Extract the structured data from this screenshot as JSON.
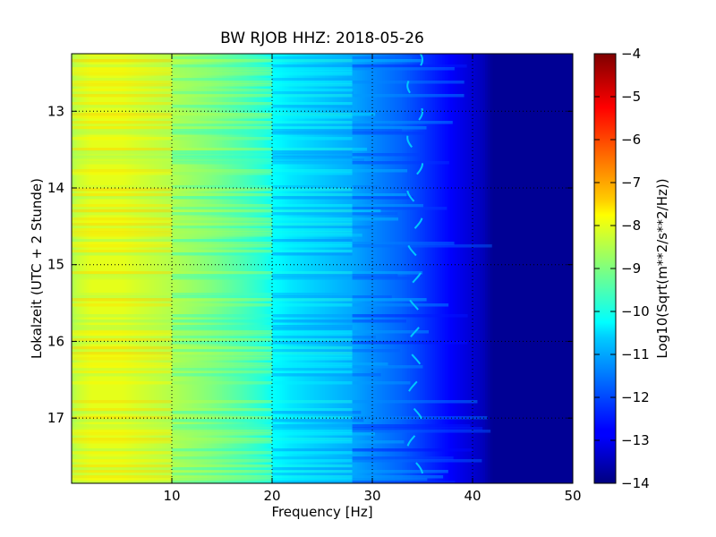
{
  "chart_data": {
    "type": "heatmap",
    "title": "BW RJOB HHZ: 2018-05-26",
    "xlabel": "Frequency [Hz]",
    "ylabel": "Lokalzeit (UTC + 2 Stunde)",
    "xlim": [
      0,
      50
    ],
    "ylim": [
      12.25,
      17.85
    ],
    "y_inverted": true,
    "x_ticks": [
      10,
      20,
      30,
      40,
      50
    ],
    "x_tick_labels": [
      "10",
      "20",
      "30",
      "40",
      "50"
    ],
    "y_ticks": [
      13,
      14,
      15,
      16,
      17
    ],
    "y_tick_labels": [
      "13",
      "14",
      "15",
      "16",
      "17"
    ],
    "grid": true,
    "colormap": "jet",
    "colorbar": {
      "label": "Log10(Sqrt(m**2/s**2/Hz))",
      "range": [
        -14,
        -4
      ],
      "ticks": [
        -4,
        -5,
        -6,
        -7,
        -8,
        -9,
        -10,
        -11,
        -12,
        -13,
        -14
      ],
      "tick_labels": [
        "−4",
        "−5",
        "−6",
        "−7",
        "−8",
        "−9",
        "−10",
        "−11",
        "−12",
        "−13",
        "−14"
      ]
    },
    "spectral_profile": {
      "frequency_hz": [
        0,
        0.5,
        2,
        5,
        10,
        14,
        17,
        19,
        20,
        22,
        25,
        28,
        30,
        33,
        35,
        37,
        39,
        40,
        41,
        42,
        50
      ],
      "log10_amplitude": [
        -8.6,
        -8.3,
        -8.0,
        -8.0,
        -8.5,
        -9.0,
        -9.5,
        -9.9,
        -10.2,
        -10.5,
        -10.8,
        -11.1,
        -11.4,
        -11.8,
        -12.2,
        -12.6,
        -13.0,
        -13.2,
        -13.4,
        -13.8,
        -13.8
      ]
    },
    "narrowband_line": {
      "frequency_hz_range": [
        33.5,
        35
      ],
      "log10_amplitude": -10.8
    }
  }
}
